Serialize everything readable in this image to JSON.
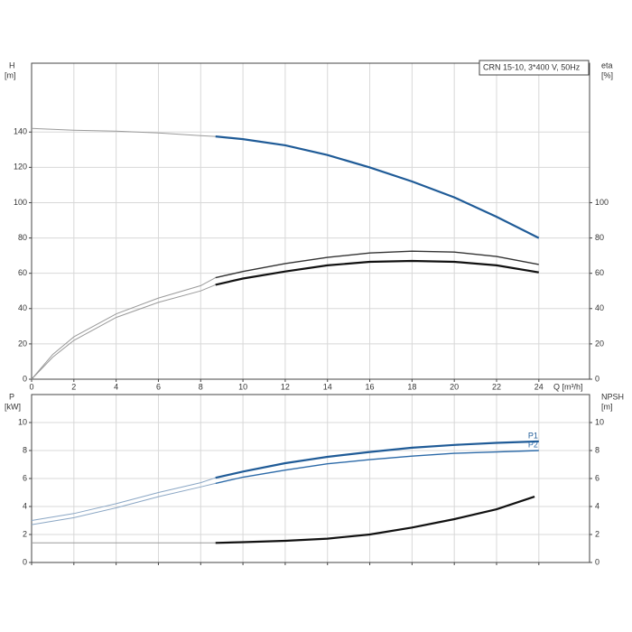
{
  "chart_data": [
    {
      "type": "line",
      "legend_text": "CRN 15-10, 3*400 V, 50Hz",
      "y_label": [
        "H",
        "[m]"
      ],
      "y2_label": [
        "eta",
        "[%]"
      ],
      "x_label": "Q [m³/h]",
      "xlim": [
        0,
        26.4
      ],
      "xticks": [
        0,
        2,
        4,
        6,
        8,
        10,
        12,
        14,
        16,
        18,
        20,
        22,
        24
      ],
      "show_xtick_labels": true,
      "ylim": [
        0,
        179
      ],
      "yticks": [
        0,
        20,
        40,
        60,
        80,
        100,
        120,
        140
      ],
      "y2lim": [
        0,
        179
      ],
      "y2ticks": [
        0,
        20,
        40,
        60,
        80,
        100
      ],
      "grid": true,
      "series": [
        {
          "color": "#9a9a9a",
          "style": "thin",
          "x": [
            0,
            2,
            4,
            6,
            8,
            8.7
          ],
          "values": [
            142,
            141,
            140.5,
            139.5,
            138,
            137.5
          ]
        },
        {
          "color": "#1f5b97",
          "style": "thick",
          "x": [
            8.7,
            10,
            12,
            14,
            16,
            18,
            20,
            22,
            24
          ],
          "values": [
            137.5,
            136,
            132.5,
            127,
            120,
            112,
            103,
            92,
            80
          ]
        },
        {
          "color": "#9a9a9a",
          "style": "thin",
          "axis": "y2",
          "x": [
            0,
            1,
            2,
            4,
            6,
            8,
            8.7
          ],
          "values": [
            0,
            14,
            24,
            37,
            46,
            53,
            57.5
          ]
        },
        {
          "color": "#333333",
          "style": "mid",
          "axis": "y2",
          "x": [
            8.7,
            10,
            12,
            14,
            16,
            18,
            20,
            22,
            24
          ],
          "values": [
            57.5,
            61,
            65.5,
            69,
            71.5,
            72.5,
            72,
            69.5,
            65
          ]
        },
        {
          "color": "#9a9a9a",
          "style": "thin",
          "axis": "y2",
          "x": [
            0,
            1,
            2,
            4,
            6,
            8,
            8.7
          ],
          "values": [
            0,
            12.5,
            22,
            35,
            43.5,
            50,
            53.5
          ]
        },
        {
          "color": "#111111",
          "style": "thick",
          "axis": "y2",
          "x": [
            8.7,
            10,
            12,
            14,
            16,
            18,
            20,
            22,
            24
          ],
          "values": [
            53.5,
            57,
            61,
            64.5,
            66.5,
            67,
            66.5,
            64.5,
            60.5
          ]
        }
      ]
    },
    {
      "type": "line",
      "y_label": [
        "P",
        "[kW]"
      ],
      "y2_label": [
        "NPSH",
        "[m]"
      ],
      "xlim": [
        0,
        26.4
      ],
      "xticks": [
        0,
        2,
        4,
        6,
        8,
        10,
        12,
        14,
        16,
        18,
        20,
        22,
        24
      ],
      "show_xtick_labels": false,
      "ylim": [
        0,
        12
      ],
      "yticks": [
        0,
        2,
        4,
        6,
        8,
        10
      ],
      "y2lim": [
        0,
        12
      ],
      "y2ticks": [
        0,
        2,
        4,
        6,
        8,
        10
      ],
      "grid": true,
      "series": [
        {
          "color": "#8aa6c4",
          "style": "thin",
          "x": [
            0,
            2,
            4,
            6,
            8,
            8.7
          ],
          "values": [
            3.0,
            3.5,
            4.2,
            5.0,
            5.7,
            6.05
          ]
        },
        {
          "name": "P1",
          "color": "#1f5b97",
          "style": "thick",
          "x": [
            8.7,
            10,
            12,
            14,
            16,
            18,
            20,
            22,
            24
          ],
          "values": [
            6.05,
            6.5,
            7.1,
            7.55,
            7.9,
            8.2,
            8.4,
            8.55,
            8.65
          ]
        },
        {
          "color": "#8aa6c4",
          "style": "thin",
          "x": [
            0,
            2,
            4,
            6,
            8,
            8.7
          ],
          "values": [
            2.7,
            3.2,
            3.9,
            4.7,
            5.4,
            5.65
          ]
        },
        {
          "name": "P2",
          "color": "#2c6aa8",
          "style": "mid",
          "x": [
            8.7,
            10,
            12,
            14,
            16,
            18,
            20,
            22,
            24
          ],
          "values": [
            5.65,
            6.1,
            6.6,
            7.05,
            7.35,
            7.6,
            7.8,
            7.9,
            8.0
          ]
        },
        {
          "color": "#9a9a9a",
          "style": "thin",
          "axis": "y2",
          "x": [
            0,
            4,
            8.7
          ],
          "values": [
            1.4,
            1.4,
            1.4
          ]
        },
        {
          "color": "#111111",
          "style": "thick",
          "axis": "y2",
          "x": [
            8.7,
            10,
            12,
            14,
            16,
            18,
            20,
            22,
            23.8
          ],
          "values": [
            1.4,
            1.45,
            1.55,
            1.7,
            2.0,
            2.5,
            3.1,
            3.8,
            4.7
          ]
        }
      ]
    }
  ]
}
